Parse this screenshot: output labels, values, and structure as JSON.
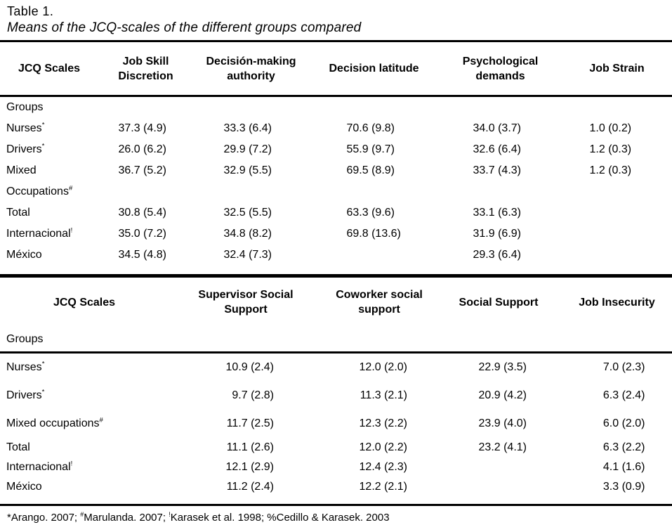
{
  "page": {
    "title": "Table 1.",
    "subtitle": "Means of the JCQ-scales of the different groups compared",
    "footnote_parts": [
      {
        "text": "*Arango. 2007; "
      },
      {
        "text": "#",
        "sup": true
      },
      {
        "text": "Marulanda. 2007; "
      },
      {
        "text": "!",
        "sup": true
      },
      {
        "text": "Karasek et al. 1998; %Cedillo & Karasek. 2003"
      }
    ]
  },
  "colors": {
    "text": "#000000",
    "background": "#ffffff",
    "rule": "#000000"
  },
  "tables": [
    {
      "header": [
        {
          "lines": [
            "JCQ Scales"
          ]
        },
        {
          "lines": [
            "Job Skill",
            "Discretion"
          ]
        },
        {
          "lines": [
            "Decisión-making",
            "authority"
          ]
        },
        {
          "lines": [
            "Decision latitude"
          ]
        },
        {
          "lines": [
            "Psychological",
            "demands"
          ]
        },
        {
          "lines": [
            "Job Strain"
          ]
        }
      ],
      "groups_label": "Groups",
      "rows": [
        {
          "label": "Nurses",
          "sup": "*",
          "values": [
            "37.3 (4.9)",
            "33.3 (6.4)",
            "70.6 (9.8)",
            "34.0 (3.7)",
            "1.0 (0.2)"
          ]
        },
        {
          "label": "Drivers",
          "sup": "*",
          "values": [
            "26.0 (6.2)",
            "29.9 (7.2)",
            "55.9 (9.7)",
            "32.6 (6.4)",
            "1.2 (0.3)"
          ]
        },
        {
          "label": "Mixed",
          "sup": "",
          "values": [
            "36.7 (5.2)",
            "32.9 (5.5)",
            "69.5 (8.9)",
            "33.7 (4.3)",
            "1.2 (0.3)"
          ]
        },
        {
          "label": "Occupations",
          "sup": "#",
          "values": [
            "",
            "",
            "",
            "",
            ""
          ]
        },
        {
          "label": "Total",
          "sup": "",
          "values": [
            "30.8 (5.4)",
            "32.5 (5.5)",
            "63.3 (9.6)",
            "33.1 (6.3)",
            ""
          ]
        },
        {
          "label": "Internacional",
          "sup": "!",
          "values": [
            "35.0 (7.2)",
            "34.8 (8.2)",
            "69.8 (13.6)",
            "31.9 (6.9)",
            ""
          ]
        },
        {
          "label": "México",
          "sup": "",
          "values": [
            "34.5 (4.8)",
            "32.4 (7.3)",
            "",
            "29.3 (6.4)",
            ""
          ]
        }
      ]
    },
    {
      "header": [
        {
          "lines": [
            "JCQ Scales"
          ]
        },
        {
          "lines": [
            "Supervisor Social",
            "Support"
          ]
        },
        {
          "lines": [
            "Coworker social",
            "support"
          ]
        },
        {
          "lines": [
            "Social Support"
          ]
        },
        {
          "lines": [
            "Job Insecurity"
          ]
        }
      ],
      "groups_label": "Groups",
      "rows": [
        {
          "label": "Nurses",
          "sup": "*",
          "values": [
            "10.9 (2.4)",
            "12.0 (2.0)",
            "22.9 (3.5)",
            "7.0 (2.3)"
          ]
        },
        {
          "label": "Drivers",
          "sup": "*",
          "values": [
            "9.7 (2.8)",
            "11.3 (2.1)",
            "20.9 (4.2)",
            "6.3 (2.4)"
          ]
        },
        {
          "label": "Mixed occupations",
          "sup": "#",
          "values": [
            "11.7 (2.5)",
            "12.3 (2.2)",
            "23.9 (4.0)",
            "6.0 (2.0)"
          ]
        },
        {
          "label": "Total",
          "sup": "",
          "values": [
            "11.1 (2.6)",
            "12.0 (2.2)",
            "23.2 (4.1)",
            "6.3 (2.2)"
          ]
        },
        {
          "label": "Internacional",
          "sup": "!",
          "values": [
            "12.1 (2.9)",
            "12.4 (2.3)",
            "",
            "4.1 (1.6)"
          ]
        },
        {
          "label": "México",
          "sup": "",
          "values": [
            "11.2 (2.4)",
            "12.2 (2.1)",
            "",
            "3.3 (0.9)"
          ]
        }
      ]
    }
  ]
}
